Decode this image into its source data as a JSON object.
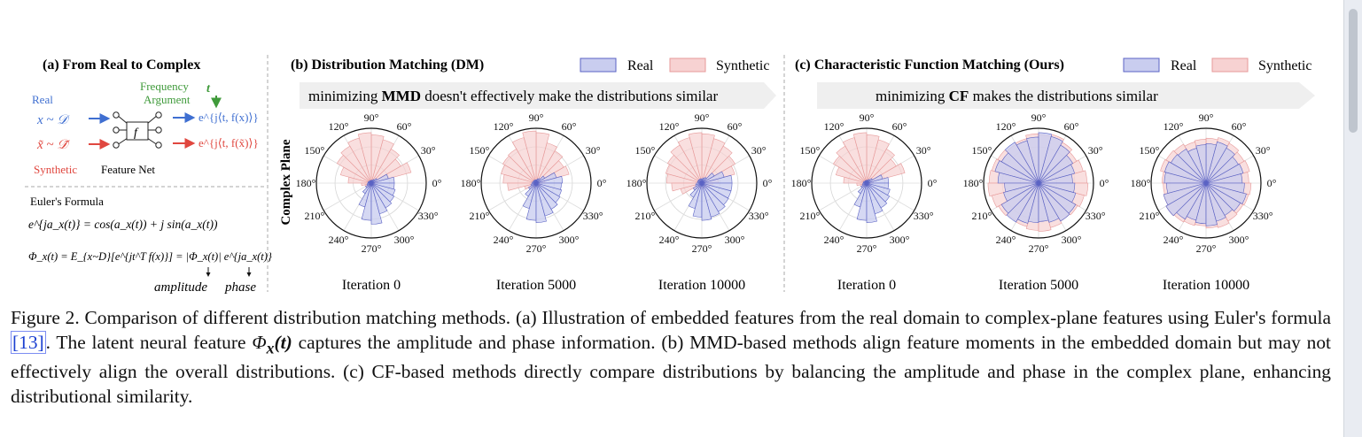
{
  "panel_a": {
    "title": "(a) From Real to Complex",
    "real_label": "Real",
    "real_var": "x ~ 𝒟",
    "synthetic_var": "x̃ ~ 𝒟̃",
    "synthetic_label": "Synthetic",
    "featurenet_label": "Feature Net",
    "f_symbol": "f",
    "freq_line1": "Frequency",
    "freq_line2": "Argument",
    "t_symbol": "t",
    "out_real": "e^{j⟨t, f(x)⟩}",
    "out_synth": "e^{j⟨t, f(x̃)⟩}",
    "euler_title": "Euler's Formula",
    "euler_eq": "e^{ja_x(t)} = cos(a_x(t)) + j sin(a_x(t))",
    "phi_eq": "Φ_x(t) = E_{x~D}[e^{jt^T f(x)}] = |Φ_x(t)| e^{ja_x(t)}",
    "amplitude_label": "amplitude",
    "phase_label": "phase"
  },
  "panel_b": {
    "title": "(b) Distribution Matching (DM)",
    "banner": {
      "pre": "minimizing ",
      "bold": "MMD",
      "post": " doesn't effectively make the distributions similar"
    },
    "iterations": [
      "Iteration 0",
      "Iteration 5000",
      "Iteration 10000"
    ]
  },
  "panel_c": {
    "title": "(c) Characteristic Function Matching (Ours)",
    "banner": {
      "pre": "minimizing ",
      "bold": "CF",
      "post": " makes the distributions similar"
    },
    "iterations": [
      "Iteration 0",
      "Iteration 5000",
      "Iteration 10000"
    ]
  },
  "legend": {
    "real": "Real",
    "synthetic": "Synthetic"
  },
  "y_axis_label": "Complex Plane",
  "angle_labels": [
    "0°",
    "30°",
    "60°",
    "90°",
    "120°",
    "150°",
    "180°",
    "210°",
    "240°",
    "270°",
    "300°",
    "330°"
  ],
  "colors": {
    "real_fill": "#c9cdef",
    "real_stroke": "#5b63c4",
    "synth_fill": "#f7d2d2",
    "synth_stroke": "#e79a9a",
    "real_text": "#3f6fd1",
    "synth_text": "#e0473f",
    "freq_text": "#3f9a3a"
  },
  "chart_data": [
    {
      "type": "polar_histogram",
      "panel": "DM",
      "title": "Iteration 0",
      "bins_deg_start": 0,
      "bin_width_deg": 15,
      "series": [
        {
          "name": "Real",
          "values": [
            0.42,
            0.32,
            0.12,
            0.08,
            0.06,
            0.05,
            0.05,
            0.05,
            0.05,
            0.05,
            0.06,
            0.06,
            0.07,
            0.08,
            0.12,
            0.22,
            0.45,
            0.68,
            0.75,
            0.58,
            0.52,
            0.48,
            0.45,
            0.42
          ]
        },
        {
          "name": "Synthetic",
          "values": [
            0.12,
            0.75,
            0.62,
            0.72,
            0.82,
            0.88,
            0.92,
            0.85,
            0.78,
            0.72,
            0.58,
            0.42,
            0.18,
            0.12,
            0.1,
            0.08,
            0.07,
            0.06,
            0.06,
            0.05,
            0.06,
            0.06,
            0.07,
            0.08
          ]
        }
      ]
    },
    {
      "type": "polar_histogram",
      "panel": "DM",
      "title": "Iteration 5000",
      "bins_deg_start": 0,
      "bin_width_deg": 15,
      "series": [
        {
          "name": "Real",
          "values": [
            0.48,
            0.38,
            0.18,
            0.1,
            0.08,
            0.06,
            0.06,
            0.06,
            0.06,
            0.06,
            0.06,
            0.07,
            0.08,
            0.1,
            0.16,
            0.28,
            0.48,
            0.68,
            0.72,
            0.62,
            0.55,
            0.5,
            0.48,
            0.46
          ]
        },
        {
          "name": "Synthetic",
          "values": [
            0.16,
            0.62,
            0.58,
            0.68,
            0.76,
            0.92,
            0.95,
            0.86,
            0.72,
            0.7,
            0.66,
            0.6,
            0.52,
            0.22,
            0.14,
            0.1,
            0.08,
            0.08,
            0.07,
            0.07,
            0.08,
            0.08,
            0.09,
            0.1
          ]
        }
      ]
    },
    {
      "type": "polar_histogram",
      "panel": "DM",
      "title": "Iteration 10000",
      "bins_deg_start": 0,
      "bin_width_deg": 15,
      "series": [
        {
          "name": "Real",
          "values": [
            0.55,
            0.42,
            0.26,
            0.12,
            0.1,
            0.08,
            0.08,
            0.08,
            0.08,
            0.08,
            0.08,
            0.08,
            0.1,
            0.12,
            0.18,
            0.3,
            0.48,
            0.62,
            0.68,
            0.64,
            0.6,
            0.56,
            0.55,
            0.55
          ]
        },
        {
          "name": "Synthetic",
          "values": [
            0.3,
            0.62,
            0.7,
            0.78,
            0.84,
            0.9,
            0.92,
            0.86,
            0.8,
            0.72,
            0.68,
            0.64,
            0.55,
            0.4,
            0.18,
            0.12,
            0.1,
            0.1,
            0.1,
            0.1,
            0.1,
            0.12,
            0.15,
            0.2
          ]
        }
      ]
    },
    {
      "type": "polar_histogram",
      "panel": "CF",
      "title": "Iteration 0",
      "bins_deg_start": 0,
      "bin_width_deg": 15,
      "series": [
        {
          "name": "Real",
          "values": [
            0.4,
            0.3,
            0.12,
            0.08,
            0.06,
            0.05,
            0.05,
            0.05,
            0.05,
            0.05,
            0.06,
            0.06,
            0.07,
            0.08,
            0.12,
            0.22,
            0.45,
            0.68,
            0.72,
            0.58,
            0.52,
            0.48,
            0.44,
            0.4
          ]
        },
        {
          "name": "Synthetic",
          "values": [
            0.12,
            0.72,
            0.62,
            0.72,
            0.82,
            0.88,
            0.92,
            0.86,
            0.78,
            0.7,
            0.58,
            0.42,
            0.18,
            0.12,
            0.1,
            0.08,
            0.07,
            0.06,
            0.06,
            0.05,
            0.06,
            0.06,
            0.07,
            0.08
          ]
        }
      ]
    },
    {
      "type": "polar_histogram",
      "panel": "CF",
      "title": "Iteration 5000",
      "bins_deg_start": 0,
      "bin_width_deg": 15,
      "series": [
        {
          "name": "Real",
          "values": [
            0.62,
            0.68,
            0.72,
            0.8,
            0.88,
            0.92,
            0.84,
            0.8,
            0.86,
            0.78,
            0.82,
            0.74,
            0.62,
            0.66,
            0.78,
            0.82,
            0.76,
            0.72,
            0.7,
            0.74,
            0.8,
            0.78,
            0.7,
            0.66
          ]
        },
        {
          "name": "Synthetic",
          "values": [
            0.88,
            0.84,
            0.8,
            0.86,
            0.92,
            0.88,
            0.9,
            0.84,
            0.82,
            0.86,
            0.88,
            0.9,
            0.92,
            0.88,
            0.84,
            0.8,
            0.82,
            0.86,
            0.88,
            0.84,
            0.8,
            0.82,
            0.86,
            0.9
          ]
        }
      ]
    },
    {
      "type": "polar_histogram",
      "panel": "CF",
      "title": "Iteration 10000",
      "bins_deg_start": 0,
      "bin_width_deg": 15,
      "series": [
        {
          "name": "Real",
          "values": [
            0.66,
            0.7,
            0.68,
            0.74,
            0.78,
            0.72,
            0.7,
            0.66,
            0.72,
            0.74,
            0.78,
            0.76,
            0.72,
            0.8,
            0.84,
            0.76,
            0.7,
            0.74,
            0.78,
            0.72,
            0.68,
            0.72,
            0.76,
            0.7
          ]
        },
        {
          "name": "Synthetic",
          "values": [
            0.78,
            0.82,
            0.8,
            0.84,
            0.86,
            0.82,
            0.8,
            0.78,
            0.82,
            0.84,
            0.86,
            0.8,
            0.78,
            0.8,
            0.84,
            0.82,
            0.8,
            0.78,
            0.82,
            0.84,
            0.8,
            0.78,
            0.8,
            0.82
          ]
        }
      ]
    }
  ],
  "caption": {
    "prefix": "Figure 2. Comparison of different distribution matching methods. (a) Illustration of embedded features from the real domain to complex-plane features using Euler's formula ",
    "citation": "[13]",
    "mid1": ". The latent neural feature ",
    "phi_symbol": "Φ",
    "phi_sub": "x",
    "phi_paren": "(t)",
    "suffix": " captures the amplitude and phase information. (b) MMD-based methods align feature moments in the embedded domain but may not effectively align the overall distributions. (c) CF-based methods directly compare distributions by balancing the amplitude and phase in the complex plane, enhancing distributional similarity."
  }
}
